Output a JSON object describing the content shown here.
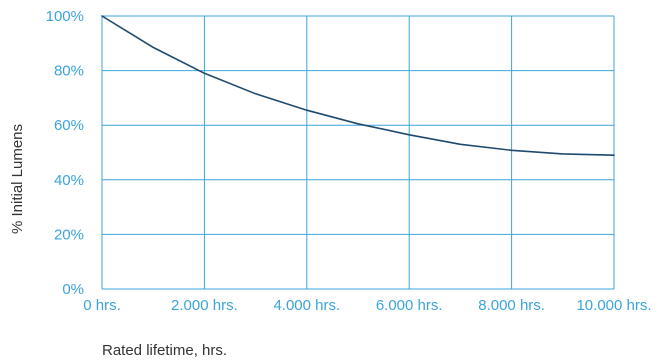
{
  "chart_data": {
    "type": "line",
    "title": "",
    "xlabel": "Rated lifetime, hrs.",
    "ylabel": "% Initial Lumens",
    "x": [
      0,
      1000,
      2000,
      3000,
      4000,
      5000,
      6000,
      7000,
      8000,
      9000,
      10000
    ],
    "series": [
      {
        "values": [
          100,
          88.5,
          79,
          71.5,
          65.5,
          60.5,
          56.5,
          53,
          50.8,
          49.5,
          49
        ]
      }
    ],
    "xlim": [
      0,
      10000
    ],
    "ylim": [
      0,
      100
    ],
    "x_ticks": [
      {
        "value": 0,
        "label": "0 hrs."
      },
      {
        "value": 2000,
        "label": "2.000 hrs."
      },
      {
        "value": 4000,
        "label": "4.000 hrs."
      },
      {
        "value": 6000,
        "label": "6.000 hrs."
      },
      {
        "value": 8000,
        "label": "8.000 hrs."
      },
      {
        "value": 10000,
        "label": "10.000 hrs."
      }
    ],
    "y_ticks": [
      {
        "value": 0,
        "label": "0%"
      },
      {
        "value": 20,
        "label": "20%"
      },
      {
        "value": 40,
        "label": "40%"
      },
      {
        "value": 60,
        "label": "60%"
      },
      {
        "value": 80,
        "label": "80%"
      },
      {
        "value": 100,
        "label": "100%"
      }
    ],
    "grid": true,
    "legend": "none",
    "colors": {
      "grid": "#3ba4dc",
      "tick_labels": "#3ba4dc",
      "line": "#1f4a6e",
      "axis_title": "#333333"
    }
  }
}
